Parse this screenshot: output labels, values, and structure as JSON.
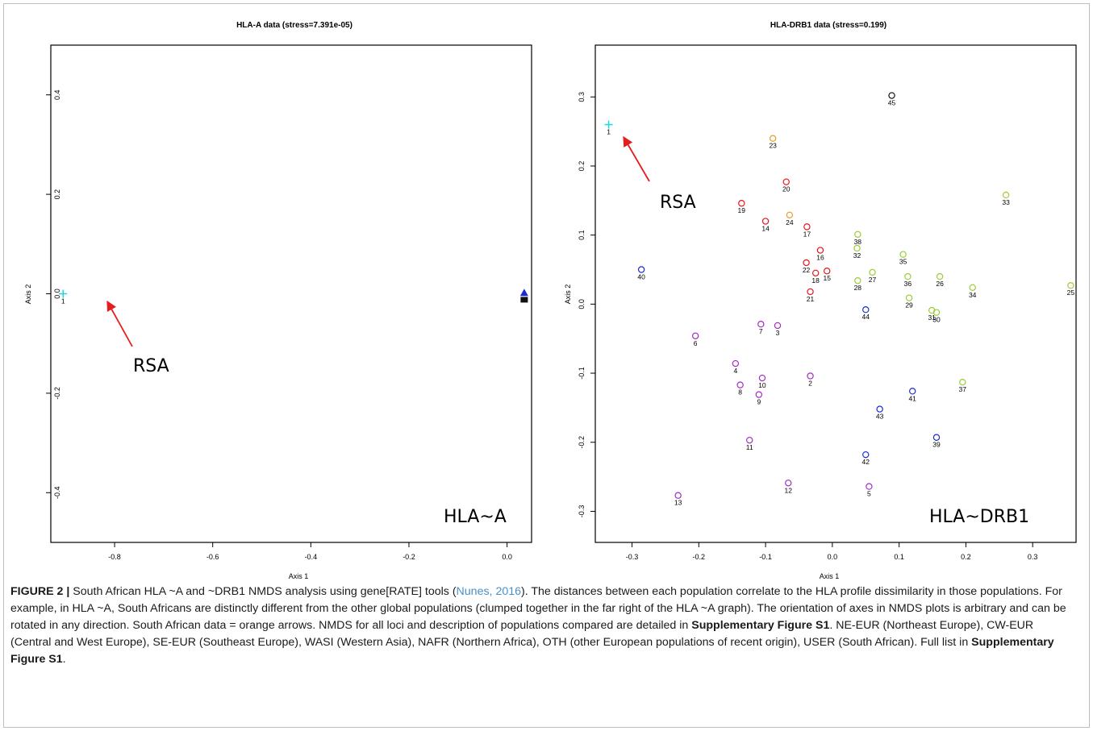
{
  "colors": {
    "red": "#e8141b",
    "orange": "#e89a2a",
    "green": "#9acd32",
    "blue": "#1a2bd6",
    "purple": "#a32cc4",
    "cyan": "#22d3e0",
    "dark": "#111111",
    "arrow": "#e41e1e",
    "caption_link": "#4a90c8"
  },
  "chart_data": [
    {
      "type": "scatter",
      "title": "HLA-A data (stress=7.391e-05)",
      "xlabel": "Axis 1",
      "ylabel": "Axis 2",
      "xlim": [
        -0.93,
        0.05
      ],
      "ylim": [
        -0.5,
        0.5
      ],
      "xticks": [
        -0.8,
        -0.6,
        -0.4,
        -0.2,
        0.0
      ],
      "xtick_labels": [
        "-0.8",
        "-0.6",
        "-0.4",
        "-0.2",
        "0.0"
      ],
      "yticks": [
        -0.4,
        -0.2,
        0.0,
        0.2,
        0.4
      ],
      "ytick_labels": [
        "-0.4",
        "-0.2",
        "0.0",
        "0.2",
        "0.4"
      ],
      "annotation": "RSA",
      "corner_label": "HLA~A",
      "points": [
        {
          "x": -0.905,
          "y": 0.0,
          "label": "1",
          "marker": "plus",
          "color": "cyan"
        },
        {
          "x": 0.035,
          "y": 0.002,
          "label": "",
          "marker": "triangle",
          "color": "blue"
        },
        {
          "x": 0.035,
          "y": -0.012,
          "label": "",
          "marker": "square",
          "color": "dark"
        }
      ]
    },
    {
      "type": "scatter",
      "title": "HLA-DRB1 data (stress=0.199)",
      "xlabel": "Axis 1",
      "ylabel": "Axis 2",
      "xlim": [
        -0.355,
        0.365
      ],
      "ylim": [
        -0.345,
        0.375
      ],
      "xticks": [
        -0.3,
        -0.2,
        -0.1,
        0.0,
        0.1,
        0.2,
        0.3
      ],
      "xtick_labels": [
        "-0.3",
        "-0.2",
        "-0.1",
        "0.0",
        "0.1",
        "0.2",
        "0.3"
      ],
      "yticks": [
        -0.3,
        -0.2,
        -0.1,
        0.0,
        0.1,
        0.2,
        0.3
      ],
      "ytick_labels": [
        "-0.3",
        "-0.2",
        "-0.1",
        "0.0",
        "0.1",
        "0.2",
        "0.3"
      ],
      "annotation": "RSA",
      "corner_label": "HLA~DRB1",
      "points": [
        {
          "x": -0.335,
          "y": 0.26,
          "label": "1",
          "marker": "plus",
          "color": "cyan"
        },
        {
          "x": -0.033,
          "y": -0.104,
          "label": "2",
          "marker": "circle",
          "color": "purple"
        },
        {
          "x": -0.082,
          "y": -0.031,
          "label": "3",
          "marker": "circle",
          "color": "purple"
        },
        {
          "x": -0.145,
          "y": -0.086,
          "label": "4",
          "marker": "circle",
          "color": "purple"
        },
        {
          "x": 0.055,
          "y": -0.264,
          "label": "5",
          "marker": "circle",
          "color": "purple"
        },
        {
          "x": -0.205,
          "y": -0.046,
          "label": "6",
          "marker": "circle",
          "color": "purple"
        },
        {
          "x": -0.107,
          "y": -0.029,
          "label": "7",
          "marker": "circle",
          "color": "purple"
        },
        {
          "x": -0.138,
          "y": -0.117,
          "label": "8",
          "marker": "circle",
          "color": "purple"
        },
        {
          "x": -0.11,
          "y": -0.131,
          "label": "9",
          "marker": "circle",
          "color": "purple"
        },
        {
          "x": -0.105,
          "y": -0.107,
          "label": "10",
          "marker": "circle",
          "color": "purple"
        },
        {
          "x": -0.124,
          "y": -0.197,
          "label": "11",
          "marker": "circle",
          "color": "purple"
        },
        {
          "x": -0.066,
          "y": -0.259,
          "label": "12",
          "marker": "circle",
          "color": "purple"
        },
        {
          "x": -0.231,
          "y": -0.277,
          "label": "13",
          "marker": "circle",
          "color": "purple"
        },
        {
          "x": -0.1,
          "y": 0.12,
          "label": "14",
          "marker": "circle",
          "color": "red"
        },
        {
          "x": -0.008,
          "y": 0.048,
          "label": "15",
          "marker": "circle",
          "color": "red"
        },
        {
          "x": -0.018,
          "y": 0.078,
          "label": "16",
          "marker": "circle",
          "color": "red"
        },
        {
          "x": -0.038,
          "y": 0.112,
          "label": "17",
          "marker": "circle",
          "color": "red"
        },
        {
          "x": -0.025,
          "y": 0.045,
          "label": "18",
          "marker": "circle",
          "color": "red"
        },
        {
          "x": -0.136,
          "y": 0.146,
          "label": "19",
          "marker": "circle",
          "color": "red"
        },
        {
          "x": -0.069,
          "y": 0.177,
          "label": "20",
          "marker": "circle",
          "color": "red"
        },
        {
          "x": -0.033,
          "y": 0.018,
          "label": "21",
          "marker": "circle",
          "color": "red"
        },
        {
          "x": -0.039,
          "y": 0.06,
          "label": "22",
          "marker": "circle",
          "color": "red"
        },
        {
          "x": -0.089,
          "y": 0.24,
          "label": "23",
          "marker": "circle",
          "color": "orange"
        },
        {
          "x": -0.064,
          "y": 0.129,
          "label": "24",
          "marker": "circle",
          "color": "orange"
        },
        {
          "x": 0.357,
          "y": 0.027,
          "label": "25",
          "marker": "circle",
          "color": "green"
        },
        {
          "x": 0.161,
          "y": 0.04,
          "label": "26",
          "marker": "circle",
          "color": "green"
        },
        {
          "x": 0.06,
          "y": 0.046,
          "label": "27",
          "marker": "circle",
          "color": "green"
        },
        {
          "x": 0.038,
          "y": 0.034,
          "label": "28",
          "marker": "circle",
          "color": "green"
        },
        {
          "x": 0.115,
          "y": 0.009,
          "label": "29",
          "marker": "circle",
          "color": "green"
        },
        {
          "x": 0.156,
          "y": -0.012,
          "label": "30",
          "marker": "circle",
          "color": "green"
        },
        {
          "x": 0.149,
          "y": -0.009,
          "label": "31",
          "marker": "circle",
          "color": "green"
        },
        {
          "x": 0.037,
          "y": 0.081,
          "label": "32",
          "marker": "circle",
          "color": "green"
        },
        {
          "x": 0.26,
          "y": 0.158,
          "label": "33",
          "marker": "circle",
          "color": "green"
        },
        {
          "x": 0.21,
          "y": 0.024,
          "label": "34",
          "marker": "circle",
          "color": "green"
        },
        {
          "x": 0.106,
          "y": 0.072,
          "label": "35",
          "marker": "circle",
          "color": "green"
        },
        {
          "x": 0.113,
          "y": 0.04,
          "label": "36",
          "marker": "circle",
          "color": "green"
        },
        {
          "x": 0.195,
          "y": -0.113,
          "label": "37",
          "marker": "circle",
          "color": "green"
        },
        {
          "x": 0.038,
          "y": 0.101,
          "label": "38",
          "marker": "circle",
          "color": "green"
        },
        {
          "x": 0.156,
          "y": -0.193,
          "label": "39",
          "marker": "circle",
          "color": "blue"
        },
        {
          "x": -0.286,
          "y": 0.05,
          "label": "40",
          "marker": "circle",
          "color": "blue"
        },
        {
          "x": 0.12,
          "y": -0.126,
          "label": "41",
          "marker": "circle",
          "color": "blue"
        },
        {
          "x": 0.05,
          "y": -0.218,
          "label": "42",
          "marker": "circle",
          "color": "blue"
        },
        {
          "x": 0.071,
          "y": -0.152,
          "label": "43",
          "marker": "circle",
          "color": "blue"
        },
        {
          "x": 0.05,
          "y": -0.008,
          "label": "44",
          "marker": "circle",
          "color": "blue"
        },
        {
          "x": 0.089,
          "y": 0.302,
          "label": "45",
          "marker": "circle",
          "color": "dark"
        }
      ]
    }
  ],
  "caption": {
    "label": "FIGURE 2 |",
    "t1": " South African HLA ~A and ~DRB1 NMDS analysis using gene[RATE] tools (",
    "cite": "Nunes, 2016",
    "t2": "). The distances between each population correlate to the HLA profile dissimilarity in those populations. For example, in HLA ~A, South Africans are distinctly different from the other global populations (clumped together in the far right of the HLA ~A graph). The orientation of axes in NMDS plots is arbitrary and can be rotated in any direction. South African data = orange arrows. NMDS for all loci and description of populations compared are detailed in ",
    "ref1": "Supplementary Figure S1",
    "t3": ". NE-EUR (Northeast Europe), CW-EUR (Central and West Europe), SE-EUR (Southeast Europe), WASI (Western Asia), NAFR (Northern Africa), OTH (other European populations of recent origin), USER (South African). Full list in ",
    "ref2": "Supplementary Figure S1",
    "t4": "."
  }
}
